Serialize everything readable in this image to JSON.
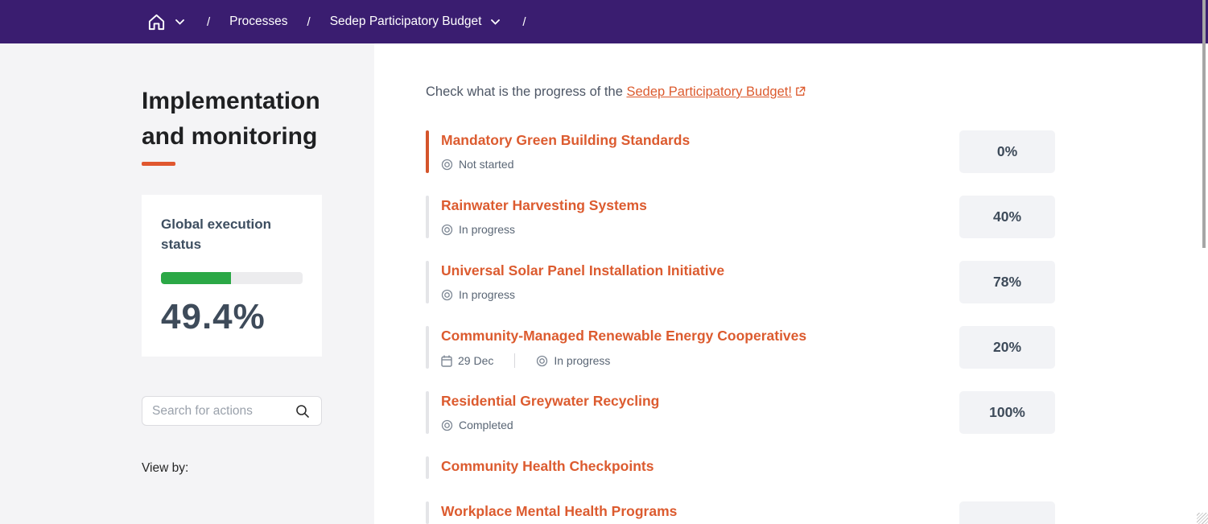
{
  "topbar": {
    "separator": "/",
    "processes_label": "Processes",
    "process_label": "Sedep Participatory Budget"
  },
  "sidebar": {
    "heading": "Implementation and monitoring",
    "status_card": {
      "title": "Global execution status",
      "percent_label": "49.4%",
      "percent_value": 49.4
    },
    "search_placeholder": "Search for actions",
    "view_by_label": "View by:"
  },
  "main": {
    "intro_text": "Check what is the progress of the",
    "intro_link_label": "Sedep Participatory Budget!",
    "items": [
      {
        "title": "Mandatory Green Building Standards",
        "status": "Not started",
        "percent": "0%",
        "accent": true
      },
      {
        "title": "Rainwater Harvesting Systems",
        "status": "In progress",
        "percent": "40%"
      },
      {
        "title": "Universal Solar Panel Installation Initiative",
        "status": "In progress",
        "percent": "78%"
      },
      {
        "title": "Community-Managed Renewable Energy Cooperatives",
        "date": "29 Dec",
        "status": "In progress",
        "percent": "20%"
      },
      {
        "title": "Residential Greywater Recycling",
        "status": "Completed",
        "percent": "100%"
      },
      {
        "title": "Community Health Checkpoints"
      },
      {
        "title": "Workplace Mental Health Programs",
        "percent": "",
        "show_box": true
      }
    ]
  },
  "colors": {
    "navbar_purple": "#3a1d70",
    "accent_orange": "#dc5b2f",
    "accent_bar_orange": "#d4542a",
    "underline_orange": "#e0572f",
    "progress_green": "#2ba846",
    "dark_slate": "#3e4b5a",
    "sidebar_bg": "#f4f4f6",
    "percent_box_bg": "#f2f3f6"
  }
}
